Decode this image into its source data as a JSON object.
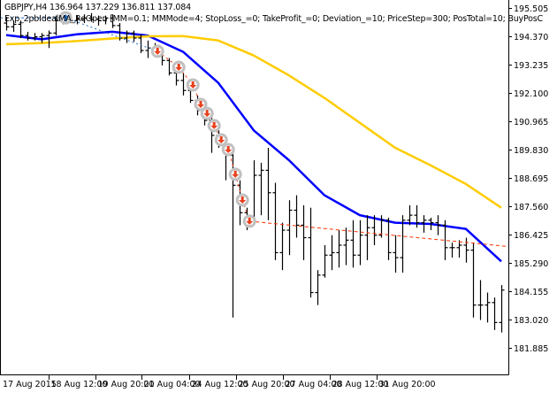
{
  "header": {
    "symbol_line": "GBPJPY,H4  136.964 137.229 136.811 137.084",
    "expert_line": "Exp_2pbIdealMA_ReOpen [MM=0.1; MMMode=4; StopLoss_=0; TakeProfit_=0; Deviation_=10; PriceStep=300; PosTotal=10; BuyPosC"
  },
  "chart_data": {
    "type": "ohlc",
    "title": "GBPJPY,H4",
    "ylim": [
      181.3,
      195.8
    ],
    "grid": false,
    "y_ticks": [
      "195.505",
      "194.370",
      "193.235",
      "192.100",
      "190.965",
      "189.830",
      "188.695",
      "187.560",
      "186.425",
      "185.290",
      "184.155",
      "183.020",
      "181.885"
    ],
    "x_ticks": [
      {
        "label": "17 Aug 2015",
        "bar": 0
      },
      {
        "label": "18 Aug 12:00",
        "bar": 6.6
      },
      {
        "label": "19 Aug 20:00",
        "bar": 13.2
      },
      {
        "label": "21 Aug 04:00",
        "bar": 19.8
      },
      {
        "label": "24 Aug 12:00",
        "bar": 26.5
      },
      {
        "label": "25 Aug 20:00",
        "bar": 33.1
      },
      {
        "label": "27 Aug 04:00",
        "bar": 39.7
      },
      {
        "label": "28 Aug 12:00",
        "bar": 46.4
      },
      {
        "label": "31 Aug 20:00",
        "bar": 53.0
      }
    ],
    "bars_ohlc": [
      [
        194.9,
        195.15,
        194.6,
        194.75
      ],
      [
        194.75,
        195.0,
        194.55,
        194.85
      ],
      [
        194.85,
        195.0,
        194.3,
        194.4
      ],
      [
        194.4,
        194.55,
        194.2,
        194.3
      ],
      [
        194.3,
        194.5,
        194.2,
        194.35
      ],
      [
        194.35,
        194.5,
        194.1,
        194.4
      ],
      [
        194.4,
        194.6,
        193.9,
        194.5
      ],
      [
        194.5,
        195.2,
        194.4,
        195.0
      ],
      [
        195.0,
        195.25,
        194.85,
        195.1
      ],
      [
        195.1,
        195.3,
        194.9,
        195.0
      ],
      [
        195.0,
        195.2,
        194.85,
        195.05
      ],
      [
        195.05,
        195.25,
        194.9,
        195.1
      ],
      [
        195.1,
        195.3,
        194.95,
        195.05
      ],
      [
        195.05,
        195.2,
        194.8,
        195.0
      ],
      [
        195.0,
        195.2,
        194.85,
        195.1
      ],
      [
        195.1,
        195.25,
        194.7,
        194.8
      ],
      [
        194.8,
        194.9,
        194.2,
        194.3
      ],
      [
        194.3,
        194.6,
        194.1,
        194.5
      ],
      [
        194.5,
        194.6,
        194.15,
        194.3
      ],
      [
        194.3,
        194.45,
        193.7,
        193.8
      ],
      [
        193.8,
        194.2,
        193.5,
        193.9
      ],
      [
        193.9,
        194.1,
        193.6,
        193.7
      ],
      [
        193.7,
        193.85,
        193.2,
        193.4
      ],
      [
        193.4,
        193.5,
        192.8,
        192.9
      ],
      [
        192.9,
        193.1,
        192.4,
        192.6
      ],
      [
        192.6,
        192.9,
        192.0,
        192.2
      ],
      [
        192.2,
        192.4,
        191.7,
        191.8
      ],
      [
        191.8,
        192.0,
        191.2,
        191.4
      ],
      [
        191.4,
        191.6,
        190.8,
        191.0
      ],
      [
        191.0,
        191.2,
        189.7,
        190.4
      ],
      [
        190.4,
        190.6,
        189.9,
        190.1
      ],
      [
        190.1,
        190.3,
        188.6,
        189.6
      ],
      [
        189.6,
        189.8,
        183.1,
        188.4
      ],
      [
        188.4,
        188.6,
        186.8,
        187.3
      ],
      [
        187.3,
        187.5,
        186.6,
        186.9
      ],
      [
        186.9,
        189.4,
        186.8,
        188.8
      ],
      [
        188.8,
        189.3,
        187.2,
        189.0
      ],
      [
        189.0,
        189.9,
        187.0,
        188.1
      ],
      [
        188.1,
        188.5,
        185.4,
        185.7
      ],
      [
        185.7,
        186.9,
        185.0,
        186.6
      ],
      [
        186.6,
        187.8,
        185.6,
        187.4
      ],
      [
        187.4,
        188.0,
        186.3,
        186.8
      ],
      [
        186.8,
        187.6,
        185.4,
        186.3
      ],
      [
        186.3,
        187.5,
        183.9,
        184.1
      ],
      [
        184.1,
        185.0,
        183.6,
        184.8
      ],
      [
        184.8,
        186.0,
        184.7,
        185.6
      ],
      [
        185.6,
        186.4,
        185.0,
        185.7
      ],
      [
        185.7,
        186.6,
        185.1,
        186.0
      ],
      [
        186.0,
        186.7,
        185.2,
        186.2
      ],
      [
        186.2,
        187.0,
        185.1,
        185.6
      ],
      [
        185.6,
        187.0,
        185.2,
        186.4
      ],
      [
        186.4,
        187.2,
        185.4,
        186.7
      ],
      [
        186.7,
        187.2,
        186.0,
        186.4
      ],
      [
        186.4,
        187.2,
        186.3,
        187.0
      ],
      [
        187.0,
        187.1,
        185.4,
        185.7
      ],
      [
        185.7,
        186.4,
        184.9,
        185.5
      ],
      [
        185.5,
        187.2,
        184.9,
        187.0
      ],
      [
        187.0,
        187.6,
        186.8,
        187.2
      ],
      [
        187.2,
        187.6,
        186.7,
        186.9
      ],
      [
        186.9,
        187.2,
        186.5,
        187.0
      ],
      [
        187.0,
        187.1,
        186.6,
        186.9
      ],
      [
        186.9,
        187.2,
        186.4,
        186.8
      ],
      [
        186.8,
        187.0,
        185.4,
        185.9
      ],
      [
        185.9,
        186.1,
        185.5,
        185.9
      ],
      [
        185.9,
        186.2,
        185.5,
        186.0
      ],
      [
        186.0,
        186.3,
        185.3,
        185.8
      ],
      [
        185.8,
        186.1,
        183.1,
        183.6
      ],
      [
        183.6,
        184.6,
        183.0,
        183.6
      ],
      [
        183.6,
        184.1,
        182.9,
        183.7
      ],
      [
        183.7,
        183.9,
        182.6,
        182.9
      ],
      [
        182.9,
        184.4,
        182.5,
        184.2
      ]
    ],
    "series": [
      {
        "color": "#0000ff",
        "bars": [
          0,
          5,
          10,
          15,
          20,
          25,
          30,
          35,
          40,
          45,
          50,
          55,
          60,
          65,
          70
        ],
        "values": [
          194.42,
          194.25,
          194.45,
          194.55,
          194.4,
          193.75,
          192.5,
          190.6,
          189.4,
          188.0,
          187.2,
          186.9,
          186.85,
          186.65,
          185.35
        ]
      },
      {
        "color": "#ffcc00",
        "bars": [
          0,
          5,
          10,
          15,
          20,
          25,
          30,
          35,
          40,
          45,
          50,
          55,
          60,
          65,
          70
        ],
        "values": [
          194.05,
          194.1,
          194.18,
          194.28,
          194.37,
          194.38,
          194.2,
          193.6,
          192.8,
          191.9,
          190.9,
          189.9,
          189.2,
          188.45,
          187.5
        ]
      }
    ],
    "trades": [
      {
        "type": "buy",
        "bar": 8.4,
        "price": 195.11
      },
      {
        "type": "sell",
        "bar": 21.4,
        "price": 193.77
      },
      {
        "type": "sell",
        "bar": 24.4,
        "price": 193.13
      },
      {
        "type": "sell",
        "bar": 26.4,
        "price": 192.42
      },
      {
        "type": "sell",
        "bar": 27.5,
        "price": 191.64
      },
      {
        "type": "sell",
        "bar": 28.4,
        "price": 191.28
      },
      {
        "type": "sell",
        "bar": 29.4,
        "price": 190.79
      },
      {
        "type": "sell",
        "bar": 30.4,
        "price": 190.22
      },
      {
        "type": "sell",
        "bar": 31.4,
        "price": 189.83
      },
      {
        "type": "sell",
        "bar": 32.4,
        "price": 188.84
      },
      {
        "type": "sell",
        "bar": 33.4,
        "price": 187.81
      },
      {
        "type": "sell",
        "bar": 34.4,
        "price": 186.96
      }
    ],
    "open_position_line": {
      "color": "#ff3300",
      "from": {
        "bar": 34.4,
        "price": 186.96
      },
      "to": {
        "bar": 78,
        "price": 185.75
      }
    },
    "colors": {
      "bars": "#000000",
      "sell": "#e8401c",
      "buy": "#1e6fc0",
      "marker_ring": "#c0c0c0"
    }
  }
}
